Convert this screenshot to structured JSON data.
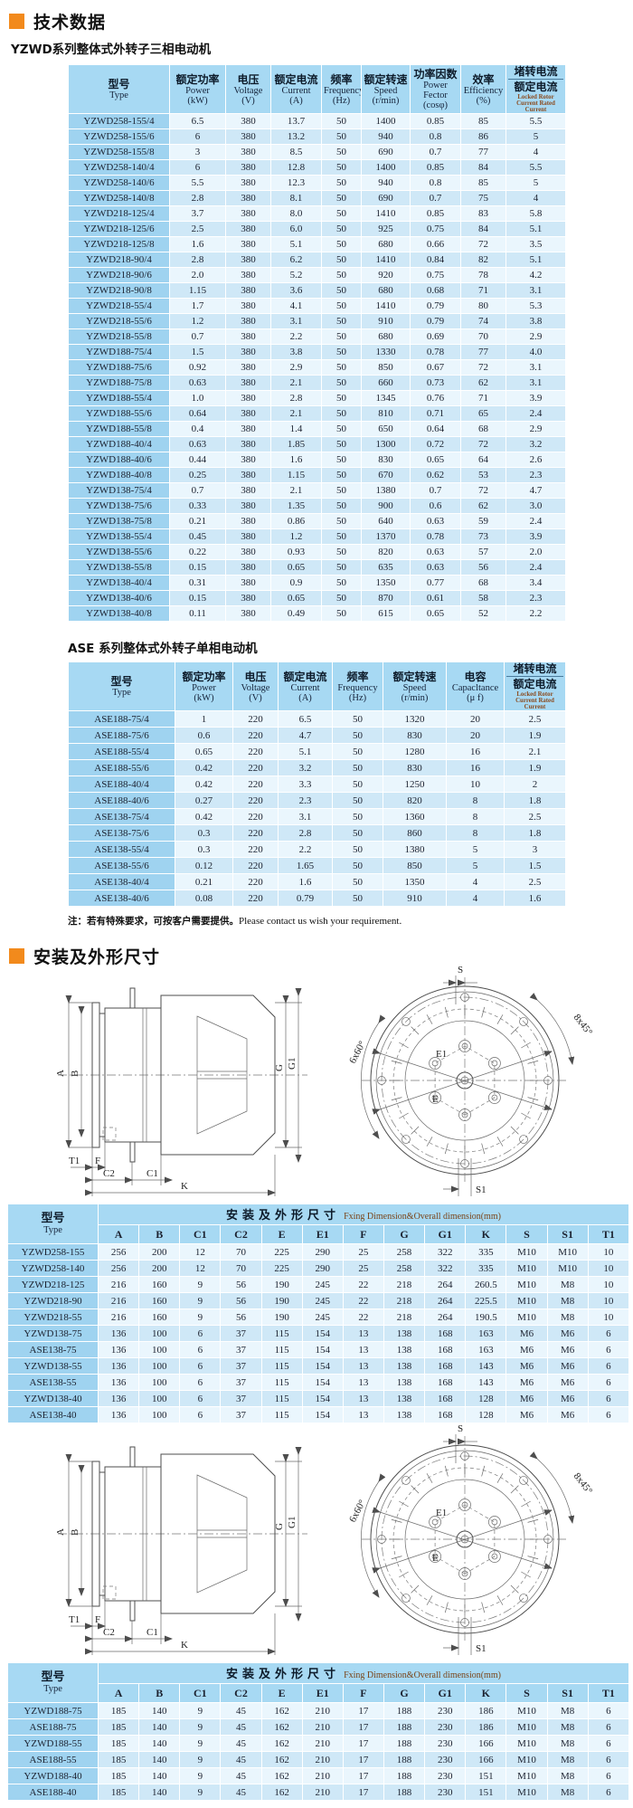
{
  "page": {
    "section1_title": "技术数据",
    "yzwd_subtitle": "YZWD系列整体式外转子三相电动机",
    "ase_subtitle": "ASE 系列整体式外转子单相电动机",
    "note_cn": "注：若有特殊要求，可按客户需要提供。",
    "note_en": "Please contact us wish your requirement.",
    "section2_title": "安装及外形尺寸",
    "accent_orange": "#f28a1c",
    "header_blue": "#a7d9f3",
    "row_blue_light": "#eaf6fd",
    "row_blue_dark": "#cfe8f7",
    "type_col_blue": "#9fd3f0"
  },
  "spec_yzwd": {
    "headers": [
      {
        "cn": "型号",
        "en": "Type"
      },
      {
        "cn": "额定功率",
        "en": "Power",
        "unit": "(kW)"
      },
      {
        "cn": "电压",
        "en": "Voltage",
        "unit": "(V)"
      },
      {
        "cn": "额定电流",
        "en": "Current",
        "unit": "(A)"
      },
      {
        "cn": "频率",
        "en": "Frequency",
        "unit": "(Hz)"
      },
      {
        "cn": "额定转速",
        "en": "Speed",
        "unit": "(r/min)"
      },
      {
        "cn": "功率因数",
        "en": "Power Fector",
        "unit": "(cosφ)"
      },
      {
        "cn": "效率",
        "en": "Efficiency",
        "unit": "(%)"
      },
      {
        "cn": "堵转电流",
        "cn2": "额定电流",
        "en": "Locked Rotor Current Rated Current"
      }
    ],
    "rows": [
      [
        "YZWD258-155/4",
        "6.5",
        "380",
        "13.7",
        "50",
        "1400",
        "0.85",
        "85",
        "5.5"
      ],
      [
        "YZWD258-155/6",
        "6",
        "380",
        "13.2",
        "50",
        "940",
        "0.8",
        "86",
        "5"
      ],
      [
        "YZWD258-155/8",
        "3",
        "380",
        "8.5",
        "50",
        "690",
        "0.7",
        "77",
        "4"
      ],
      [
        "YZWD258-140/4",
        "6",
        "380",
        "12.8",
        "50",
        "1400",
        "0.85",
        "84",
        "5.5"
      ],
      [
        "YZWD258-140/6",
        "5.5",
        "380",
        "12.3",
        "50",
        "940",
        "0.8",
        "85",
        "5"
      ],
      [
        "YZWD258-140/8",
        "2.8",
        "380",
        "8.1",
        "50",
        "690",
        "0.7",
        "75",
        "4"
      ],
      [
        "YZWD218-125/4",
        "3.7",
        "380",
        "8.0",
        "50",
        "1410",
        "0.85",
        "83",
        "5.8"
      ],
      [
        "YZWD218-125/6",
        "2.5",
        "380",
        "6.0",
        "50",
        "925",
        "0.75",
        "84",
        "5.1"
      ],
      [
        "YZWD218-125/8",
        "1.6",
        "380",
        "5.1",
        "50",
        "680",
        "0.66",
        "72",
        "3.5"
      ],
      [
        "YZWD218-90/4",
        "2.8",
        "380",
        "6.2",
        "50",
        "1410",
        "0.84",
        "82",
        "5.1"
      ],
      [
        "YZWD218-90/6",
        "2.0",
        "380",
        "5.2",
        "50",
        "920",
        "0.75",
        "78",
        "4.2"
      ],
      [
        "YZWD218-90/8",
        "1.15",
        "380",
        "3.6",
        "50",
        "680",
        "0.68",
        "71",
        "3.1"
      ],
      [
        "YZWD218-55/4",
        "1.7",
        "380",
        "4.1",
        "50",
        "1410",
        "0.79",
        "80",
        "5.3"
      ],
      [
        "YZWD218-55/6",
        "1.2",
        "380",
        "3.1",
        "50",
        "910",
        "0.79",
        "74",
        "3.8"
      ],
      [
        "YZWD218-55/8",
        "0.7",
        "380",
        "2.2",
        "50",
        "680",
        "0.69",
        "70",
        "2.9"
      ],
      [
        "YZWD188-75/4",
        "1.5",
        "380",
        "3.8",
        "50",
        "1330",
        "0.78",
        "77",
        "4.0"
      ],
      [
        "YZWD188-75/6",
        "0.92",
        "380",
        "2.9",
        "50",
        "850",
        "0.67",
        "72",
        "3.1"
      ],
      [
        "YZWD188-75/8",
        "0.63",
        "380",
        "2.1",
        "50",
        "660",
        "0.73",
        "62",
        "3.1"
      ],
      [
        "YZWD188-55/4",
        "1.0",
        "380",
        "2.8",
        "50",
        "1345",
        "0.76",
        "71",
        "3.9"
      ],
      [
        "YZWD188-55/6",
        "0.64",
        "380",
        "2.1",
        "50",
        "810",
        "0.71",
        "65",
        "2.4"
      ],
      [
        "YZWD188-55/8",
        "0.4",
        "380",
        "1.4",
        "50",
        "650",
        "0.64",
        "68",
        "2.9"
      ],
      [
        "YZWD188-40/4",
        "0.63",
        "380",
        "1.85",
        "50",
        "1300",
        "0.72",
        "72",
        "3.2"
      ],
      [
        "YZWD188-40/6",
        "0.44",
        "380",
        "1.6",
        "50",
        "830",
        "0.65",
        "64",
        "2.6"
      ],
      [
        "YZWD188-40/8",
        "0.25",
        "380",
        "1.15",
        "50",
        "670",
        "0.62",
        "53",
        "2.3"
      ],
      [
        "YZWD138-75/4",
        "0.7",
        "380",
        "2.1",
        "50",
        "1380",
        "0.7",
        "72",
        "4.7"
      ],
      [
        "YZWD138-75/6",
        "0.33",
        "380",
        "1.35",
        "50",
        "900",
        "0.6",
        "62",
        "3.0"
      ],
      [
        "YZWD138-75/8",
        "0.21",
        "380",
        "0.86",
        "50",
        "640",
        "0.63",
        "59",
        "2.4"
      ],
      [
        "YZWD138-55/4",
        "0.45",
        "380",
        "1.2",
        "50",
        "1370",
        "0.78",
        "73",
        "3.9"
      ],
      [
        "YZWD138-55/6",
        "0.22",
        "380",
        "0.93",
        "50",
        "820",
        "0.63",
        "57",
        "2.0"
      ],
      [
        "YZWD138-55/8",
        "0.15",
        "380",
        "0.65",
        "50",
        "635",
        "0.63",
        "56",
        "2.4"
      ],
      [
        "YZWD138-40/4",
        "0.31",
        "380",
        "0.9",
        "50",
        "1350",
        "0.77",
        "68",
        "3.4"
      ],
      [
        "YZWD138-40/6",
        "0.15",
        "380",
        "0.65",
        "50",
        "870",
        "0.61",
        "58",
        "2.3"
      ],
      [
        "YZWD138-40/8",
        "0.11",
        "380",
        "0.49",
        "50",
        "615",
        "0.65",
        "52",
        "2.2"
      ]
    ]
  },
  "spec_ase": {
    "headers": [
      {
        "cn": "型号",
        "en": "Type"
      },
      {
        "cn": "额定功率",
        "en": "Power",
        "unit": "(kW)"
      },
      {
        "cn": "电压",
        "en": "Voltage",
        "unit": "(V)"
      },
      {
        "cn": "额定电流",
        "en": "Current",
        "unit": "(A)"
      },
      {
        "cn": "频率",
        "en": "Frequency",
        "unit": "(Hz)"
      },
      {
        "cn": "额定转速",
        "en": "Speed",
        "unit": "(r/min)"
      },
      {
        "cn": "电容",
        "en": "Capacltance",
        "unit": "(μ f)"
      },
      {
        "cn": "堵转电流",
        "cn2": "额定电流",
        "en": "Locked Rotor Current Rated Current"
      }
    ],
    "rows": [
      [
        "ASE188-75/4",
        "1",
        "220",
        "6.5",
        "50",
        "1320",
        "20",
        "2.5"
      ],
      [
        "ASE188-75/6",
        "0.6",
        "220",
        "4.7",
        "50",
        "830",
        "20",
        "1.9"
      ],
      [
        "ASE188-55/4",
        "0.65",
        "220",
        "5.1",
        "50",
        "1280",
        "16",
        "2.1"
      ],
      [
        "ASE188-55/6",
        "0.42",
        "220",
        "3.2",
        "50",
        "830",
        "16",
        "1.9"
      ],
      [
        "ASE188-40/4",
        "0.42",
        "220",
        "3.3",
        "50",
        "1250",
        "10",
        "2"
      ],
      [
        "ASE188-40/6",
        "0.27",
        "220",
        "2.3",
        "50",
        "820",
        "8",
        "1.8"
      ],
      [
        "ASE138-75/4",
        "0.42",
        "220",
        "3.1",
        "50",
        "1360",
        "8",
        "2.5"
      ],
      [
        "ASE138-75/6",
        "0.3",
        "220",
        "2.8",
        "50",
        "860",
        "8",
        "1.8"
      ],
      [
        "ASE138-55/4",
        "0.3",
        "220",
        "2.2",
        "50",
        "1380",
        "5",
        "3"
      ],
      [
        "ASE138-55/6",
        "0.12",
        "220",
        "1.65",
        "50",
        "850",
        "5",
        "1.5"
      ],
      [
        "ASE138-40/4",
        "0.21",
        "220",
        "1.6",
        "50",
        "1350",
        "4",
        "2.5"
      ],
      [
        "ASE138-40/6",
        "0.08",
        "220",
        "0.79",
        "50",
        "910",
        "4",
        "1.6"
      ]
    ]
  },
  "dim_tables": {
    "type_header": {
      "cn": "型号",
      "en": "Type"
    },
    "span_header": {
      "cn": "安装及外形尺寸",
      "en": "Fxing Dimension&Overall dimension(mm)"
    },
    "columns": [
      "A",
      "B",
      "C1",
      "C2",
      "E",
      "E1",
      "F",
      "G",
      "G1",
      "K",
      "S",
      "S1",
      "T1"
    ],
    "table1_rows": [
      [
        "YZWD258-155",
        "256",
        "200",
        "12",
        "70",
        "225",
        "290",
        "25",
        "258",
        "322",
        "335",
        "M10",
        "M10",
        "10"
      ],
      [
        "YZWD258-140",
        "256",
        "200",
        "12",
        "70",
        "225",
        "290",
        "25",
        "258",
        "322",
        "335",
        "M10",
        "M10",
        "10"
      ],
      [
        "YZWD218-125",
        "216",
        "160",
        "9",
        "56",
        "190",
        "245",
        "22",
        "218",
        "264",
        "260.5",
        "M10",
        "M8",
        "10"
      ],
      [
        "YZWD218-90",
        "216",
        "160",
        "9",
        "56",
        "190",
        "245",
        "22",
        "218",
        "264",
        "225.5",
        "M10",
        "M8",
        "10"
      ],
      [
        "YZWD218-55",
        "216",
        "160",
        "9",
        "56",
        "190",
        "245",
        "22",
        "218",
        "264",
        "190.5",
        "M10",
        "M8",
        "10"
      ],
      [
        "YZWD138-75",
        "136",
        "100",
        "6",
        "37",
        "115",
        "154",
        "13",
        "138",
        "168",
        "163",
        "M6",
        "M6",
        "6"
      ],
      [
        "ASE138-75",
        "136",
        "100",
        "6",
        "37",
        "115",
        "154",
        "13",
        "138",
        "168",
        "163",
        "M6",
        "M6",
        "6"
      ],
      [
        "YZWD138-55",
        "136",
        "100",
        "6",
        "37",
        "115",
        "154",
        "13",
        "138",
        "168",
        "143",
        "M6",
        "M6",
        "6"
      ],
      [
        "ASE138-55",
        "136",
        "100",
        "6",
        "37",
        "115",
        "154",
        "13",
        "138",
        "168",
        "143",
        "M6",
        "M6",
        "6"
      ],
      [
        "YZWD138-40",
        "136",
        "100",
        "6",
        "37",
        "115",
        "154",
        "13",
        "138",
        "168",
        "128",
        "M6",
        "M6",
        "6"
      ],
      [
        "ASE138-40",
        "136",
        "100",
        "6",
        "37",
        "115",
        "154",
        "13",
        "138",
        "168",
        "128",
        "M6",
        "M6",
        "6"
      ]
    ],
    "table2_rows": [
      [
        "YZWD188-75",
        "185",
        "140",
        "9",
        "45",
        "162",
        "210",
        "17",
        "188",
        "230",
        "186",
        "M10",
        "M8",
        "6"
      ],
      [
        "ASE188-75",
        "185",
        "140",
        "9",
        "45",
        "162",
        "210",
        "17",
        "188",
        "230",
        "186",
        "M10",
        "M8",
        "6"
      ],
      [
        "YZWD188-55",
        "185",
        "140",
        "9",
        "45",
        "162",
        "210",
        "17",
        "188",
        "230",
        "166",
        "M10",
        "M8",
        "6"
      ],
      [
        "ASE188-55",
        "185",
        "140",
        "9",
        "45",
        "162",
        "210",
        "17",
        "188",
        "230",
        "166",
        "M10",
        "M8",
        "6"
      ],
      [
        "YZWD188-40",
        "185",
        "140",
        "9",
        "45",
        "162",
        "210",
        "17",
        "188",
        "230",
        "151",
        "M10",
        "M8",
        "6"
      ],
      [
        "ASE188-40",
        "185",
        "140",
        "9",
        "45",
        "162",
        "210",
        "17",
        "188",
        "230",
        "151",
        "M10",
        "M8",
        "6"
      ]
    ]
  },
  "drawings": {
    "side": {
      "a": "A",
      "b": "B",
      "g": "G",
      "g1": "G1",
      "t1": "T1",
      "f": "F",
      "c2": "C2",
      "c1": "C1",
      "k": "K"
    },
    "front": {
      "s": "S",
      "s1": "S1",
      "holes6": "6x60°",
      "holes8": "8x45°",
      "e1": "E1",
      "e": "E"
    }
  }
}
